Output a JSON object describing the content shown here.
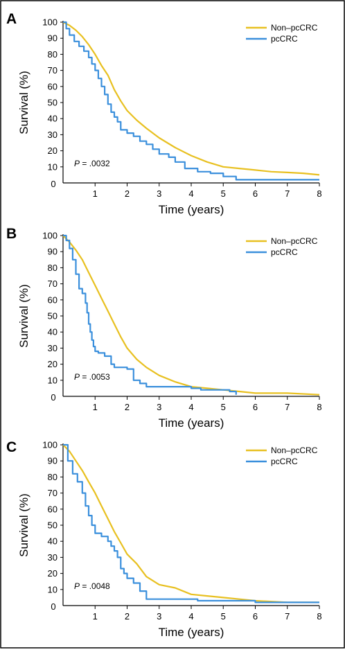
{
  "colors": {
    "non_pccrc": "#e8c020",
    "pccrc": "#3a8fdc",
    "axis": "#000000",
    "border": "#000000"
  },
  "x_axis_label": "Time (years)",
  "y_axis_label": "Survival (%)",
  "chart_data": [
    {
      "type": "line",
      "panel_label": "A",
      "p_value_prefix": "P",
      "p_value_text": " = .0032",
      "xlabel": "Time (years)",
      "ylabel": "Survival (%)",
      "xlim": [
        0,
        8
      ],
      "ylim": [
        0,
        100
      ],
      "x_ticks": [
        1,
        2,
        3,
        4,
        5,
        6,
        7,
        8
      ],
      "y_ticks": [
        0,
        10,
        20,
        30,
        40,
        50,
        60,
        70,
        80,
        90,
        100
      ],
      "legend_position": "top-right",
      "grid": false,
      "series": [
        {
          "name": "Non–pcCRC",
          "color": "#e8c020",
          "step": false,
          "x": [
            0,
            0.2,
            0.4,
            0.6,
            0.8,
            1.0,
            1.2,
            1.4,
            1.6,
            1.8,
            2.0,
            2.3,
            2.6,
            3.0,
            3.5,
            4.0,
            4.5,
            5.0,
            5.5,
            6.0,
            6.5,
            7.0,
            7.5,
            8.0
          ],
          "y": [
            100,
            98,
            95,
            91,
            86,
            80,
            73,
            67,
            58,
            51,
            45,
            39,
            34,
            28,
            22,
            17,
            13,
            10,
            9,
            8,
            7,
            6.5,
            6,
            5
          ]
        },
        {
          "name": "pcCRC",
          "color": "#3a8fdc",
          "step": true,
          "x": [
            0,
            0.1,
            0.2,
            0.35,
            0.5,
            0.65,
            0.8,
            0.9,
            1.0,
            1.1,
            1.2,
            1.3,
            1.4,
            1.5,
            1.6,
            1.7,
            1.8,
            2.0,
            2.2,
            2.4,
            2.6,
            2.8,
            3.0,
            3.3,
            3.5,
            3.8,
            4.2,
            4.6,
            5.0,
            5.4,
            6.0,
            7.0,
            8.0
          ],
          "y": [
            100,
            96,
            92,
            88,
            85,
            82,
            78,
            74,
            70,
            65,
            60,
            55,
            49,
            44,
            41,
            38,
            33,
            31,
            29,
            26,
            24,
            21,
            18,
            16,
            13,
            9,
            7,
            6,
            4,
            2,
            2,
            2,
            2
          ]
        }
      ]
    },
    {
      "type": "line",
      "panel_label": "B",
      "p_value_prefix": "P",
      "p_value_text": " = .0053",
      "xlabel": "Time (years)",
      "ylabel": "Survival (%)",
      "xlim": [
        0,
        8
      ],
      "ylim": [
        0,
        100
      ],
      "x_ticks": [
        1,
        2,
        3,
        4,
        5,
        6,
        7,
        8
      ],
      "y_ticks": [
        0,
        10,
        20,
        30,
        40,
        50,
        60,
        70,
        80,
        90,
        100
      ],
      "legend_position": "top-right",
      "grid": false,
      "series": [
        {
          "name": "Non–pcCRC",
          "color": "#e8c020",
          "step": false,
          "x": [
            0,
            0.2,
            0.4,
            0.6,
            0.8,
            1.0,
            1.2,
            1.4,
            1.6,
            1.8,
            2.0,
            2.3,
            2.6,
            3.0,
            3.5,
            4.0,
            4.5,
            5.0,
            5.5,
            6.0,
            7.0,
            8.0
          ],
          "y": [
            100,
            96,
            91,
            85,
            77,
            69,
            61,
            53,
            45,
            37,
            30,
            23,
            18,
            13,
            9,
            6,
            5,
            4,
            3,
            2,
            2,
            1
          ]
        },
        {
          "name": "pcCRC",
          "color": "#3a8fdc",
          "step": true,
          "x": [
            0,
            0.1,
            0.2,
            0.3,
            0.4,
            0.5,
            0.6,
            0.7,
            0.75,
            0.8,
            0.85,
            0.9,
            0.95,
            1.0,
            1.1,
            1.3,
            1.5,
            1.6,
            2.0,
            2.2,
            2.4,
            2.6,
            3.0,
            3.5,
            4.0,
            4.3,
            5.0,
            5.2,
            5.4
          ],
          "y": [
            100,
            97,
            92,
            85,
            76,
            67,
            64,
            58,
            52,
            45,
            40,
            35,
            31,
            28,
            27,
            25,
            20,
            18,
            17,
            10,
            8,
            6,
            6,
            6,
            5,
            4,
            4,
            3,
            1
          ]
        }
      ]
    },
    {
      "type": "line",
      "panel_label": "C",
      "p_value_prefix": "P",
      "p_value_text": " = .0048",
      "xlabel": "Time (years)",
      "ylabel": "Survival (%)",
      "xlim": [
        0,
        8
      ],
      "ylim": [
        0,
        100
      ],
      "x_ticks": [
        1,
        2,
        3,
        4,
        5,
        6,
        7,
        8
      ],
      "y_ticks": [
        0,
        10,
        20,
        30,
        40,
        50,
        60,
        70,
        80,
        90,
        100
      ],
      "legend_position": "top-right",
      "grid": false,
      "series": [
        {
          "name": "Non–pcCRC",
          "color": "#e8c020",
          "step": false,
          "x": [
            0,
            0.2,
            0.4,
            0.6,
            0.8,
            1.0,
            1.2,
            1.4,
            1.6,
            1.8,
            2.0,
            2.3,
            2.6,
            3.0,
            3.5,
            4.0,
            4.5,
            5.0,
            5.5,
            6.0,
            7.0,
            8.0
          ],
          "y": [
            100,
            96,
            90,
            84,
            77,
            70,
            62,
            54,
            46,
            39,
            32,
            26,
            18,
            13,
            11,
            7,
            6,
            5,
            4,
            3,
            2,
            2
          ]
        },
        {
          "name": "pcCRC",
          "color": "#3a8fdc",
          "step": true,
          "x": [
            0,
            0.15,
            0.3,
            0.45,
            0.6,
            0.7,
            0.8,
            0.9,
            1.0,
            1.2,
            1.4,
            1.5,
            1.6,
            1.7,
            1.8,
            1.9,
            2.0,
            2.2,
            2.4,
            2.6,
            3.0,
            3.5,
            4.0,
            4.2,
            5.0,
            6.0,
            7.0,
            8.0
          ],
          "y": [
            100,
            90,
            82,
            77,
            70,
            62,
            56,
            50,
            45,
            43,
            40,
            37,
            34,
            30,
            23,
            20,
            17,
            14,
            9,
            4,
            4,
            4,
            4,
            3,
            3,
            2,
            2,
            2
          ]
        }
      ]
    }
  ]
}
